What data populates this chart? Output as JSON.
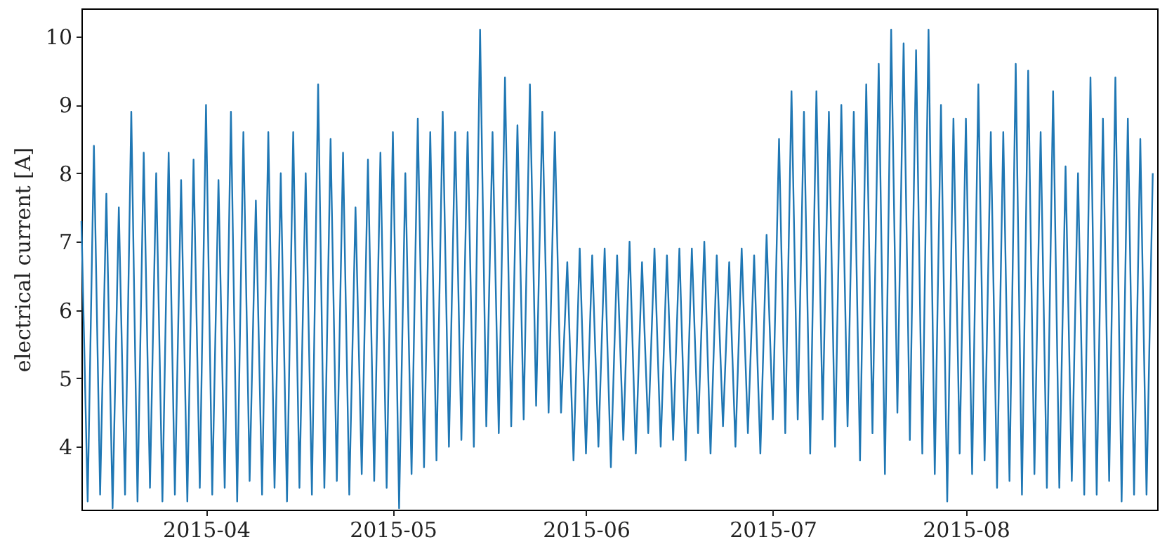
{
  "chart_data": {
    "type": "line",
    "ylabel": "electrical current [A]",
    "xlim": [
      "2015-03-12",
      "2015-08-31T17:00"
    ],
    "xticks": [
      "2015-04",
      "2015-05",
      "2015-06",
      "2015-07",
      "2015-08"
    ],
    "ylim": [
      3.08,
      10.41
    ],
    "yticks": [
      4,
      5,
      6,
      7,
      8,
      9,
      10
    ],
    "grid": false,
    "series": [
      {
        "color": "#1f77b4",
        "x": [
          "2015-03-12",
          "2015-03-13",
          "2015-03-14",
          "2015-03-15",
          "2015-03-16",
          "2015-03-17",
          "2015-03-18",
          "2015-03-19",
          "2015-03-20",
          "2015-03-21",
          "2015-03-22",
          "2015-03-23",
          "2015-03-24",
          "2015-03-25",
          "2015-03-26",
          "2015-03-27",
          "2015-03-28",
          "2015-03-29",
          "2015-03-30",
          "2015-03-31",
          "2015-04-01",
          "2015-04-02",
          "2015-04-03",
          "2015-04-04",
          "2015-04-05",
          "2015-04-06",
          "2015-04-07",
          "2015-04-08",
          "2015-04-09",
          "2015-04-10",
          "2015-04-11",
          "2015-04-12",
          "2015-04-13",
          "2015-04-14",
          "2015-04-15",
          "2015-04-16",
          "2015-04-17",
          "2015-04-18",
          "2015-04-19",
          "2015-04-20",
          "2015-04-21",
          "2015-04-22",
          "2015-04-23",
          "2015-04-24",
          "2015-04-25",
          "2015-04-26",
          "2015-04-27",
          "2015-04-28",
          "2015-04-29",
          "2015-04-30",
          "2015-05-01",
          "2015-05-02",
          "2015-05-03",
          "2015-05-04",
          "2015-05-05",
          "2015-05-06",
          "2015-05-07",
          "2015-05-08",
          "2015-05-09",
          "2015-05-10",
          "2015-05-11",
          "2015-05-12",
          "2015-05-13",
          "2015-05-14",
          "2015-05-15",
          "2015-05-16",
          "2015-05-17",
          "2015-05-18",
          "2015-05-19",
          "2015-05-20",
          "2015-05-21",
          "2015-05-22",
          "2015-05-23",
          "2015-05-24",
          "2015-05-25",
          "2015-05-26",
          "2015-05-27",
          "2015-05-28",
          "2015-05-29",
          "2015-05-30",
          "2015-05-31",
          "2015-06-01",
          "2015-06-02",
          "2015-06-03",
          "2015-06-04",
          "2015-06-05",
          "2015-06-06",
          "2015-06-07",
          "2015-06-08",
          "2015-06-09",
          "2015-06-10",
          "2015-06-11",
          "2015-06-12",
          "2015-06-13",
          "2015-06-14",
          "2015-06-15",
          "2015-06-16",
          "2015-06-17",
          "2015-06-18",
          "2015-06-19",
          "2015-06-20",
          "2015-06-21",
          "2015-06-22",
          "2015-06-23",
          "2015-06-24",
          "2015-06-25",
          "2015-06-26",
          "2015-06-27",
          "2015-06-28",
          "2015-06-29",
          "2015-06-30",
          "2015-07-01",
          "2015-07-02",
          "2015-07-03",
          "2015-07-04",
          "2015-07-05",
          "2015-07-06",
          "2015-07-07",
          "2015-07-08",
          "2015-07-09",
          "2015-07-10",
          "2015-07-11",
          "2015-07-12",
          "2015-07-13",
          "2015-07-14",
          "2015-07-15",
          "2015-07-16",
          "2015-07-17",
          "2015-07-18",
          "2015-07-19",
          "2015-07-20",
          "2015-07-21",
          "2015-07-22",
          "2015-07-23",
          "2015-07-24",
          "2015-07-25",
          "2015-07-26",
          "2015-07-27",
          "2015-07-28",
          "2015-07-29",
          "2015-07-30",
          "2015-07-31",
          "2015-08-01",
          "2015-08-02",
          "2015-08-03",
          "2015-08-04",
          "2015-08-05",
          "2015-08-06",
          "2015-08-07",
          "2015-08-08",
          "2015-08-09",
          "2015-08-10",
          "2015-08-11",
          "2015-08-12",
          "2015-08-13",
          "2015-08-14",
          "2015-08-15",
          "2015-08-16",
          "2015-08-17",
          "2015-08-18",
          "2015-08-19",
          "2015-08-20",
          "2015-08-21",
          "2015-08-22",
          "2015-08-23",
          "2015-08-24",
          "2015-08-25",
          "2015-08-26",
          "2015-08-27",
          "2015-08-28",
          "2015-08-29",
          "2015-08-30",
          "2015-08-31"
        ],
        "values": [
          7.3,
          3.2,
          8.4,
          3.3,
          7.7,
          3.1,
          7.5,
          3.3,
          8.9,
          3.2,
          8.3,
          3.4,
          8.0,
          3.2,
          8.3,
          3.3,
          7.9,
          3.2,
          8.2,
          3.4,
          9.0,
          3.3,
          7.9,
          3.4,
          8.9,
          3.2,
          8.6,
          3.5,
          7.6,
          3.3,
          8.6,
          3.4,
          8.0,
          3.2,
          8.6,
          3.4,
          8.0,
          3.3,
          9.3,
          3.4,
          8.5,
          3.5,
          8.3,
          3.3,
          7.5,
          3.6,
          8.2,
          3.5,
          8.3,
          3.4,
          8.6,
          3.1,
          8.0,
          3.6,
          8.8,
          3.7,
          8.6,
          3.8,
          8.9,
          4.0,
          8.6,
          4.1,
          8.6,
          4.0,
          10.1,
          4.3,
          8.6,
          4.2,
          9.4,
          4.3,
          8.7,
          4.4,
          9.3,
          4.6,
          8.9,
          4.5,
          8.6,
          4.5,
          6.7,
          3.8,
          6.9,
          3.9,
          6.8,
          4.0,
          6.9,
          3.7,
          6.8,
          4.1,
          7.0,
          3.9,
          6.7,
          4.2,
          6.9,
          4.0,
          6.8,
          4.1,
          6.9,
          3.8,
          6.9,
          4.2,
          7.0,
          3.9,
          6.8,
          4.3,
          6.7,
          4.0,
          6.9,
          4.2,
          6.8,
          3.9,
          7.1,
          4.4,
          8.5,
          4.2,
          9.2,
          4.4,
          8.9,
          3.9,
          9.2,
          4.4,
          8.9,
          4.0,
          9.0,
          4.3,
          8.9,
          3.8,
          9.3,
          4.2,
          9.6,
          3.6,
          10.1,
          4.5,
          9.9,
          4.1,
          9.8,
          3.9,
          10.1,
          3.6,
          9.0,
          3.2,
          8.8,
          3.9,
          8.8,
          3.6,
          9.3,
          3.8,
          8.6,
          3.4,
          8.6,
          3.5,
          9.6,
          3.3,
          9.5,
          3.6,
          8.6,
          3.4,
          9.2,
          3.4,
          8.1,
          3.5,
          8.0,
          3.3,
          9.4,
          3.3,
          8.8,
          3.5,
          9.4,
          3.2,
          8.8,
          3.3,
          8.5,
          3.3,
          8.0
        ]
      }
    ]
  }
}
